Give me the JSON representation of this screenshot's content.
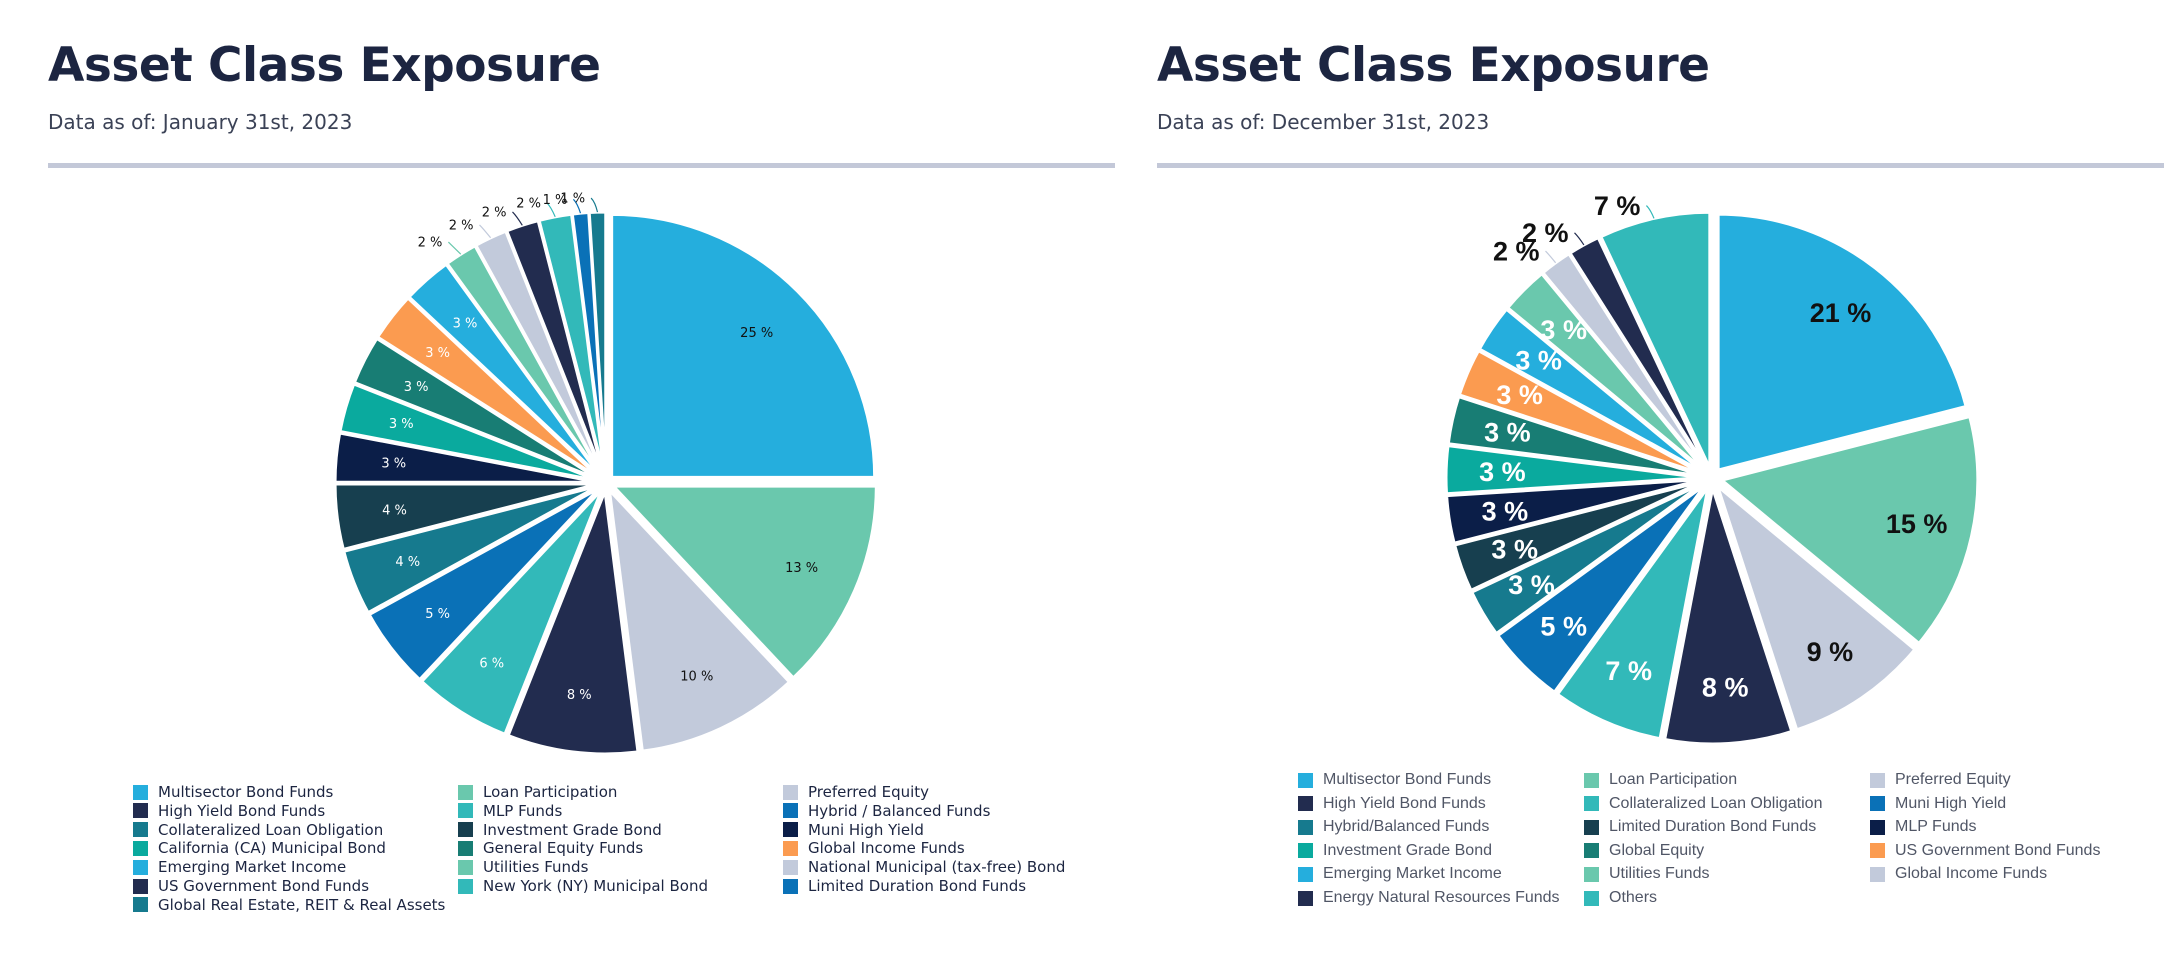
{
  "colors": {
    "title": "#1c2541",
    "rule": "#c3c8d8",
    "label_dark": "#111111",
    "label_light": "#ffffff"
  },
  "chart_data": [
    {
      "type": "pie",
      "title": "Asset Class Exposure",
      "subtitle": "Data as of: January 31st, 2023",
      "legend_position": "bottom",
      "slices": [
        {
          "label": "Multisector Bond Funds",
          "value": 25,
          "display": "25 %",
          "color": "#25aedd"
        },
        {
          "label": "Loan Participation",
          "value": 13,
          "display": "13 %",
          "color": "#6ac8ad"
        },
        {
          "label": "Preferred Equity",
          "value": 10,
          "display": "10 %",
          "color": "#c2cadb"
        },
        {
          "label": "High Yield Bond Funds",
          "value": 8,
          "display": "8 %",
          "color": "#222c4f"
        },
        {
          "label": "MLP Funds",
          "value": 6,
          "display": "6 %",
          "color": "#32b9b9"
        },
        {
          "label": "Hybrid / Balanced Funds",
          "value": 5,
          "display": "5 %",
          "color": "#0a71b7"
        },
        {
          "label": "Collateralized Loan Obligation",
          "value": 4,
          "display": "4 %",
          "color": "#167a8e"
        },
        {
          "label": "Investment Grade Bond",
          "value": 4,
          "display": "4 %",
          "color": "#173f4f"
        },
        {
          "label": "Muni High Yield",
          "value": 3,
          "display": "3 %",
          "color": "#0b1e48"
        },
        {
          "label": "California (CA) Municipal Bond",
          "value": 3,
          "display": "3 %",
          "color": "#0aaa9e"
        },
        {
          "label": "General Equity Funds",
          "value": 3,
          "display": "3 %",
          "color": "#187d74"
        },
        {
          "label": "Global Income Funds",
          "value": 3,
          "display": "3 %",
          "color": "#fb9b50"
        },
        {
          "label": "Emerging Market Income",
          "value": 3,
          "display": "3 %",
          "color": "#25aedd"
        },
        {
          "label": "Utilities Funds",
          "value": 2,
          "display": "2 %",
          "color": "#6ac8ad"
        },
        {
          "label": "National Municipal (tax-free) Bond",
          "value": 2,
          "display": "2 %",
          "color": "#c2cadb"
        },
        {
          "label": "US Government Bond Funds",
          "value": 2,
          "display": "2 %",
          "color": "#222c4f"
        },
        {
          "label": "New York (NY) Municipal Bond",
          "value": 2,
          "display": "2 %",
          "color": "#32b9b9"
        },
        {
          "label": "Limited Duration Bond Funds",
          "value": 1,
          "display": "1 %",
          "color": "#0a71b7"
        },
        {
          "label": "Global Real Estate, REIT & Real Assets",
          "value": 1,
          "display": "1 %",
          "color": "#167a8e"
        }
      ],
      "legend": [
        "Multisector Bond Funds",
        "Loan Participation",
        "Preferred Equity",
        "High Yield Bond Funds",
        "MLP Funds",
        "Hybrid / Balanced Funds",
        "Collateralized Loan Obligation",
        "Investment Grade Bond",
        "Muni High Yield",
        "California (CA) Municipal Bond",
        "General Equity Funds",
        "Global Income Funds",
        "Emerging Market Income",
        "Utilities Funds",
        "National Municipal (tax-free) Bond",
        "US Government Bond Funds",
        "New York (NY) Municipal Bond",
        "Limited Duration Bond Funds",
        "Global Real Estate, REIT & Real Assets"
      ]
    },
    {
      "type": "pie",
      "title": "Asset Class Exposure",
      "subtitle": "Data as of: December 31st, 2023",
      "legend_position": "bottom",
      "slices": [
        {
          "label": "Multisector Bond Funds",
          "value": 21,
          "display": "21 %",
          "color": "#25aedd"
        },
        {
          "label": "Loan Participation",
          "value": 15,
          "display": "15 %",
          "color": "#6ac8ad"
        },
        {
          "label": "Preferred Equity",
          "value": 9,
          "display": "9 %",
          "color": "#c2cadb"
        },
        {
          "label": "High Yield Bond Funds",
          "value": 8,
          "display": "8 %",
          "color": "#222c4f"
        },
        {
          "label": "Collateralized Loan Obligation",
          "value": 7,
          "display": "7 %",
          "color": "#32b9b9"
        },
        {
          "label": "Muni High Yield",
          "value": 5,
          "display": "5 %",
          "color": "#0a71b7"
        },
        {
          "label": "Hybrid/Balanced Funds",
          "value": 3,
          "display": "3 %",
          "color": "#167a8e"
        },
        {
          "label": "Limited Duration Bond Funds",
          "value": 3,
          "display": "3 %",
          "color": "#173f4f"
        },
        {
          "label": "MLP Funds",
          "value": 3,
          "display": "3 %",
          "color": "#0b1e48"
        },
        {
          "label": "Investment Grade Bond",
          "value": 3,
          "display": "3 %",
          "color": "#0aaa9e"
        },
        {
          "label": "Global Equity",
          "value": 3,
          "display": "3 %",
          "color": "#187d74"
        },
        {
          "label": "US Government Bond Funds",
          "value": 3,
          "display": "3 %",
          "color": "#fb9b50"
        },
        {
          "label": "Emerging Market Income",
          "value": 3,
          "display": "3 %",
          "color": "#25aedd"
        },
        {
          "label": "Utilities Funds",
          "value": 3,
          "display": "3 %",
          "color": "#6ac8ad"
        },
        {
          "label": "Global Income Funds",
          "value": 2,
          "display": "2 %",
          "color": "#c2cadb"
        },
        {
          "label": "Energy Natural Resources Funds",
          "value": 2,
          "display": "2 %",
          "color": "#222c4f"
        },
        {
          "label": "Others",
          "value": 7,
          "display": "7 %",
          "color": "#32b9b9"
        }
      ],
      "legend": [
        "Multisector Bond Funds",
        "Loan Participation",
        "Preferred Equity",
        "High Yield Bond Funds",
        "Collateralized Loan Obligation",
        "Muni High Yield",
        "Hybrid/Balanced Funds",
        "Limited Duration Bond Funds",
        "MLP Funds",
        "Investment Grade Bond",
        "Global Equity",
        "US Government Bond Funds",
        "Emerging Market Income",
        "Utilities Funds",
        "Global Income Funds",
        "Energy Natural Resources Funds",
        "Others"
      ]
    }
  ]
}
